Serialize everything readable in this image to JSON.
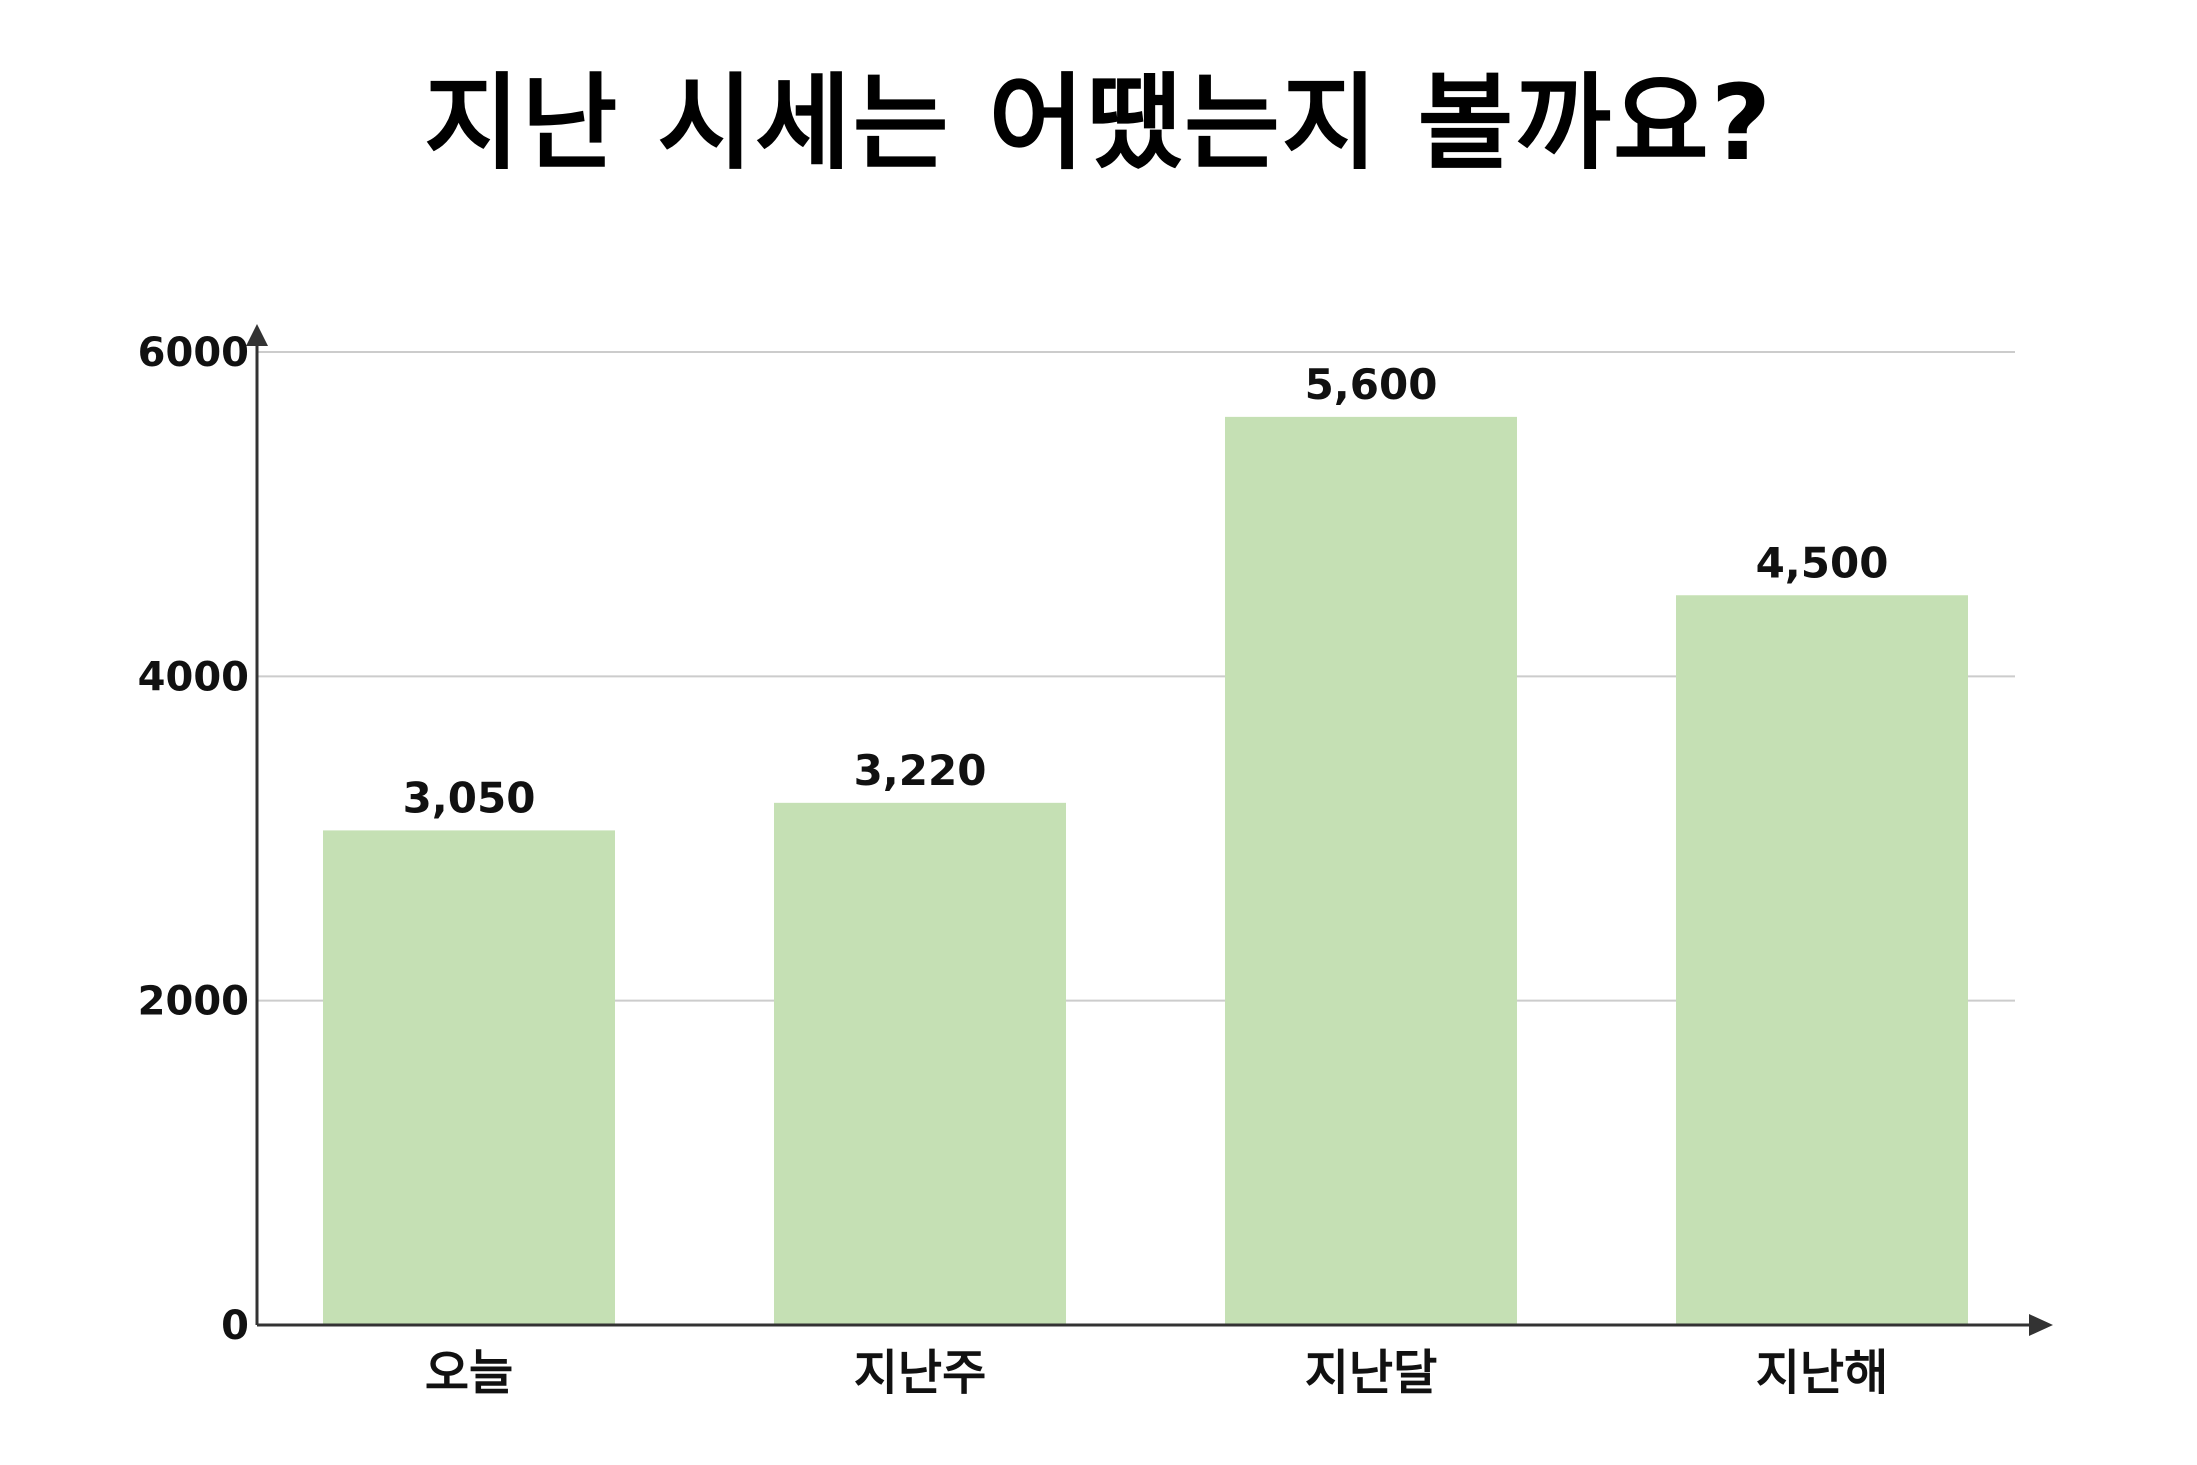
{
  "chart_data": {
    "type": "bar",
    "title": "지난 시세는 어땠는지 볼까요?",
    "categories": [
      "오늘",
      "지난주",
      "지난달",
      "지난해"
    ],
    "values": [
      3050,
      3220,
      5600,
      4500
    ],
    "value_labels": [
      "3,050",
      "3,220",
      "5,600",
      "4,500"
    ],
    "y_ticks": [
      0,
      2000,
      4000,
      6000
    ],
    "ylim": [
      0,
      6000
    ],
    "xlabel": "",
    "ylabel": "",
    "grid": true,
    "legend": "none",
    "colors": {
      "bar": "#c5e0b4",
      "axis": "#333333",
      "grid": "#cccccc",
      "text": "#111111"
    }
  }
}
